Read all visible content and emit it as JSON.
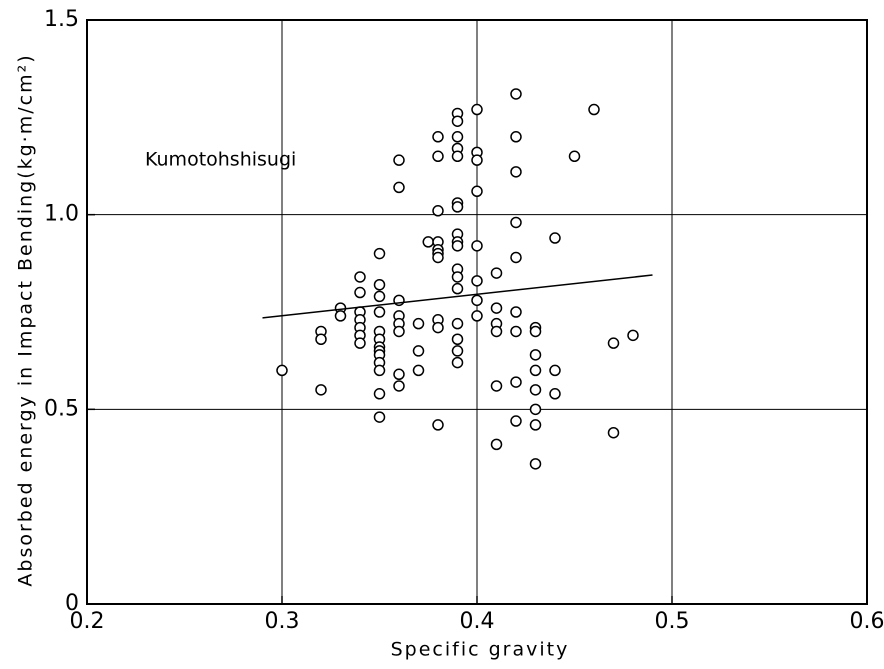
{
  "chart_data": {
    "type": "scatter",
    "x_label": "Specific gravity",
    "y_label": "Absorbed energy in Impact Bending(kg·m/cm²)",
    "annotation": "Kumotohshisugi",
    "xlim": [
      0.2,
      0.6
    ],
    "ylim": [
      0,
      1.5
    ],
    "xticks": [
      0.2,
      0.3,
      0.4,
      0.5,
      0.6
    ],
    "yticks": [
      0,
      0.5,
      {
        "value": 1,
        "label": "1.0"
      },
      1.5
    ],
    "grid": true,
    "color": "#000000",
    "x": [
      0.3,
      0.32,
      0.32,
      0.32,
      0.33,
      0.33,
      0.34,
      0.34,
      0.34,
      0.34,
      0.34,
      0.34,
      0.34,
      0.35,
      0.35,
      0.35,
      0.35,
      0.35,
      0.35,
      0.35,
      0.35,
      0.35,
      0.35,
      0.35,
      0.35,
      0.35,
      0.36,
      0.36,
      0.36,
      0.36,
      0.36,
      0.36,
      0.36,
      0.36,
      0.37,
      0.37,
      0.37,
      0.375,
      0.38,
      0.38,
      0.38,
      0.38,
      0.38,
      0.38,
      0.38,
      0.38,
      0.38,
      0.38,
      0.39,
      0.39,
      0.39,
      0.39,
      0.39,
      0.39,
      0.39,
      0.39,
      0.39,
      0.39,
      0.39,
      0.39,
      0.39,
      0.39,
      0.39,
      0.39,
      0.39,
      0.4,
      0.4,
      0.4,
      0.4,
      0.4,
      0.4,
      0.4,
      0.4,
      0.41,
      0.41,
      0.41,
      0.41,
      0.41,
      0.41,
      0.42,
      0.42,
      0.42,
      0.42,
      0.42,
      0.42,
      0.42,
      0.42,
      0.42,
      0.43,
      0.43,
      0.43,
      0.43,
      0.43,
      0.43,
      0.43,
      0.43,
      0.44,
      0.44,
      0.44,
      0.45,
      0.46,
      0.47,
      0.47,
      0.48
    ],
    "y": [
      0.6,
      0.7,
      0.68,
      0.55,
      0.76,
      0.74,
      0.84,
      0.8,
      0.75,
      0.73,
      0.71,
      0.69,
      0.67,
      0.9,
      0.82,
      0.79,
      0.75,
      0.7,
      0.68,
      0.66,
      0.65,
      0.64,
      0.62,
      0.6,
      0.54,
      0.48,
      1.14,
      1.07,
      0.78,
      0.74,
      0.72,
      0.7,
      0.59,
      0.56,
      0.72,
      0.65,
      0.6,
      0.93,
      1.2,
      1.15,
      1.01,
      0.93,
      0.91,
      0.9,
      0.89,
      0.73,
      0.71,
      0.46,
      1.26,
      1.24,
      1.2,
      1.17,
      1.15,
      1.03,
      1.02,
      0.95,
      0.93,
      0.92,
      0.86,
      0.84,
      0.81,
      0.72,
      0.68,
      0.65,
      0.62,
      1.27,
      1.16,
      1.14,
      1.06,
      0.92,
      0.83,
      0.78,
      0.74,
      0.85,
      0.76,
      0.72,
      0.7,
      0.56,
      0.41,
      1.31,
      1.2,
      1.11,
      0.98,
      0.89,
      0.75,
      0.7,
      0.57,
      0.47,
      0.71,
      0.7,
      0.64,
      0.6,
      0.55,
      0.5,
      0.46,
      0.36,
      0.94,
      0.6,
      0.54,
      1.15,
      1.27,
      0.67,
      0.44,
      0.69
    ],
    "trend_line": {
      "x": [
        0.29,
        0.49
      ],
      "y": [
        0.735,
        0.845
      ]
    }
  }
}
